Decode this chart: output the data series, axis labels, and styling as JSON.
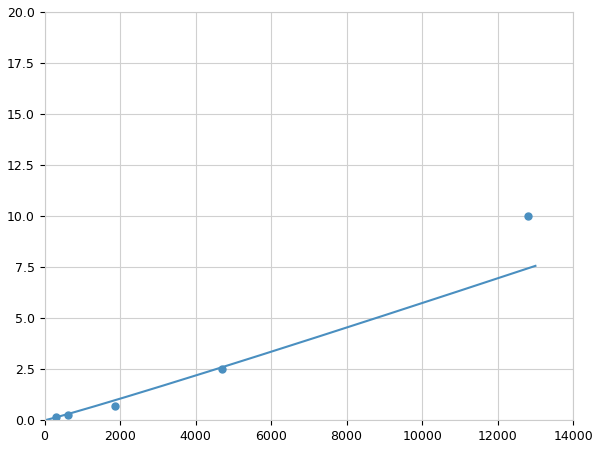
{
  "x_points": [
    156,
    312,
    625,
    1875,
    4688,
    12800
  ],
  "y_points": [
    0.1,
    0.15,
    0.25,
    0.7,
    2.5,
    10.0
  ],
  "marker_x": [
    312,
    625,
    1875,
    4688,
    12800
  ],
  "marker_y": [
    0.15,
    0.25,
    0.7,
    2.5,
    10.0
  ],
  "line_color": "#4a8fc0",
  "marker_color": "#4a8fc0",
  "marker_size": 5,
  "marker_style": "o",
  "xlim": [
    0,
    14000
  ],
  "ylim": [
    0,
    20
  ],
  "xticks": [
    0,
    2000,
    4000,
    6000,
    8000,
    10000,
    12000,
    14000
  ],
  "yticks": [
    0.0,
    2.5,
    5.0,
    7.5,
    10.0,
    12.5,
    15.0,
    17.5,
    20.0
  ],
  "grid": true,
  "grid_color": "#d0d0d0",
  "background_color": "#ffffff",
  "linewidth": 1.5,
  "figsize": [
    6.0,
    4.5
  ],
  "dpi": 100
}
